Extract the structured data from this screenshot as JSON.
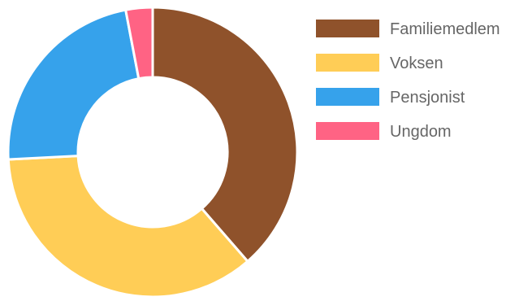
{
  "chart_data": {
    "type": "pie",
    "variant": "doughnut",
    "categories": [
      "Familiemedlem",
      "Voksen",
      "Pensjonist",
      "Ungdom"
    ],
    "values": [
      38.6,
      35.6,
      22.8,
      3.0
    ],
    "colors": [
      "#8f522b",
      "#ffcd56",
      "#36a2eb",
      "#ff6384"
    ],
    "legend_position": "right",
    "title": "",
    "xlabel": "",
    "ylabel": ""
  }
}
